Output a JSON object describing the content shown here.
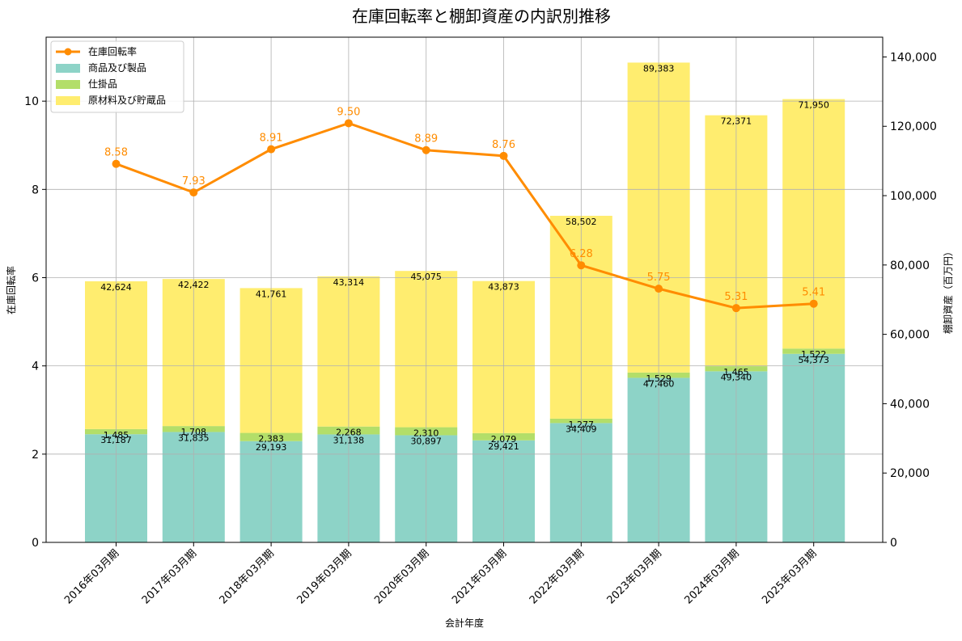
{
  "chart_data": {
    "type": "bar",
    "title": "在庫回転率と棚卸資産の内訳別推移",
    "xlabel": "会計年度",
    "ylabel_left": "在庫回転率",
    "ylabel_right": "棚卸資産（百万円）",
    "categories": [
      "2016年03月期",
      "2017年03月期",
      "2018年03月期",
      "2019年03月期",
      "2020年03月期",
      "2021年03月期",
      "2022年03月期",
      "2023年03月期",
      "2024年03月期",
      "2025年03月期"
    ],
    "series": [
      {
        "name": "商品及び製品",
        "axis": "right",
        "kind": "stacked-bar",
        "color": "#8dd3c7",
        "values": [
          31187,
          31835,
          29193,
          31138,
          30897,
          29421,
          34409,
          47460,
          49340,
          54373
        ],
        "labels": [
          "31,187",
          "31,835",
          "29,193",
          "31,138",
          "30,897",
          "29,421",
          "34,409",
          "47,460",
          "49,340",
          "54,373"
        ]
      },
      {
        "name": "仕掛品",
        "axis": "right",
        "kind": "stacked-bar",
        "color": "#b3de69",
        "values": [
          1485,
          1708,
          2383,
          2268,
          2310,
          2079,
          1277,
          1529,
          1465,
          1522
        ],
        "labels": [
          "1,485",
          "1,708",
          "2,383",
          "2,268",
          "2,310",
          "2,079",
          "1,277",
          "1,529",
          "1,465",
          "1,522"
        ]
      },
      {
        "name": "原材料及び貯蔵品",
        "axis": "right",
        "kind": "stacked-bar",
        "color": "#ffed6f",
        "values": [
          42624,
          42422,
          41761,
          43314,
          45075,
          43873,
          58502,
          89383,
          72371,
          71950
        ],
        "labels": [
          "42,624",
          "42,422",
          "41,761",
          "43,314",
          "45,075",
          "43,873",
          "58,502",
          "89,383",
          "72,371",
          "71,950"
        ]
      },
      {
        "name": "在庫回転率",
        "axis": "left",
        "kind": "line",
        "color": "#ff8c00",
        "values": [
          8.58,
          7.93,
          8.91,
          9.5,
          8.89,
          8.76,
          6.28,
          5.75,
          5.31,
          5.41
        ],
        "labels": [
          "8.58",
          "7.93",
          "8.91",
          "9.50",
          "8.89",
          "8.76",
          "6.28",
          "5.75",
          "5.31",
          "5.41"
        ]
      }
    ],
    "ylim_left": [
      0,
      11.45
    ],
    "ylim_right": [
      0,
      145700
    ],
    "yticks_left": [
      "0",
      "2",
      "4",
      "6",
      "8",
      "10"
    ],
    "yticks_left_values": [
      0,
      2,
      4,
      6,
      8,
      10
    ],
    "yticks_right": [
      "0",
      "20,000",
      "40,000",
      "60,000",
      "80,000",
      "100,000",
      "120,000",
      "140,000"
    ],
    "yticks_right_values": [
      0,
      20000,
      40000,
      60000,
      80000,
      100000,
      120000,
      140000
    ],
    "legend": {
      "position": "top-left",
      "entries": [
        "在庫回転率",
        "商品及び製品",
        "仕掛品",
        "原材料及び貯蔵品"
      ]
    },
    "grid": true
  }
}
